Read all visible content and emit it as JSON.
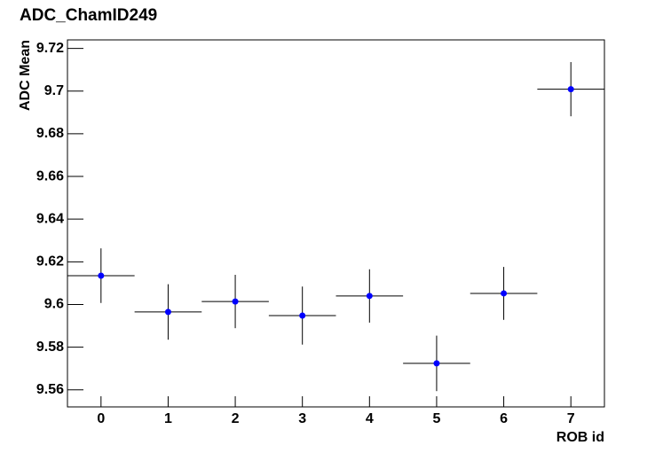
{
  "chart_data": {
    "type": "errorbar",
    "title": "ADC_ChamID249",
    "x_label": "ROB id",
    "y_label": "ADC Mean",
    "x": [
      0,
      1,
      2,
      3,
      4,
      5,
      6,
      7
    ],
    "x_errors": [
      0.5,
      0.5,
      0.5,
      0.5,
      0.5,
      0.5,
      0.5,
      0.5
    ],
    "series": [
      {
        "color": "#0000ff",
        "values": [
          9.6135,
          9.5965,
          9.6014,
          9.5948,
          9.604,
          9.5724,
          9.6052,
          9.7009
        ],
        "errors": [
          0.0128,
          0.013,
          0.0125,
          0.0136,
          0.0125,
          0.013,
          0.0124,
          0.0127
        ]
      }
    ],
    "xlim": [
      -0.5,
      7.5
    ],
    "xticks": [
      0,
      1,
      2,
      3,
      4,
      5,
      6,
      7
    ],
    "ylim": [
      9.552,
      9.724
    ],
    "yticks": [
      9.56,
      9.58,
      9.6,
      9.62,
      9.64,
      9.66,
      9.68,
      9.7,
      9.72
    ]
  }
}
